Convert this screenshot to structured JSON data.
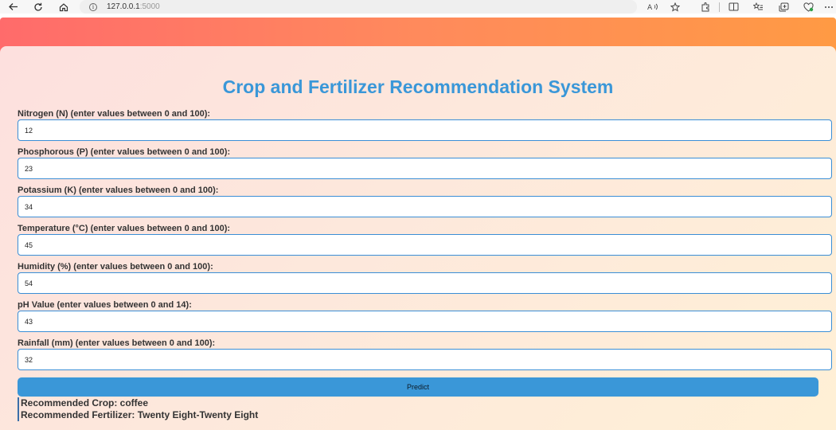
{
  "browser": {
    "url_host": "127.0.0.1",
    "url_port": ":5000",
    "info_glyph": "i",
    "back_icon": "back-arrow-icon",
    "reload_icon": "reload-icon",
    "home_icon": "home-icon"
  },
  "page": {
    "title": "Crop and Fertilizer Recommendation System"
  },
  "form": {
    "fields": [
      {
        "label": "Nitrogen (N) (enter values between 0 and 100):",
        "value": "12"
      },
      {
        "label": "Phosphorous (P) (enter values between 0 and 100):",
        "value": "23"
      },
      {
        "label": "Potassium (K) (enter values between 0 and 100):",
        "value": "34"
      },
      {
        "label": "Temperature (°C) (enter values between 0 and 100):",
        "value": "45"
      },
      {
        "label": "Humidity (%) (enter values between 0 and 100):",
        "value": "54"
      },
      {
        "label": "pH Value (enter values between 0 and 14):",
        "value": "43"
      },
      {
        "label": "Rainfall (mm) (enter values between 0 and 100):",
        "value": "32"
      }
    ],
    "predict_label": "Predict"
  },
  "result": {
    "crop_line": "Recommended Crop: coffee",
    "fertilizer_line": "Recommended Fertilizer: Twenty Eight-Twenty Eight"
  },
  "colors": {
    "title": "#3a97d8",
    "button": "#3a97d8",
    "input_border": "#3a8ed6",
    "header_gradient_start": "#ff6b6b",
    "header_gradient_end": "#ff9a44"
  }
}
